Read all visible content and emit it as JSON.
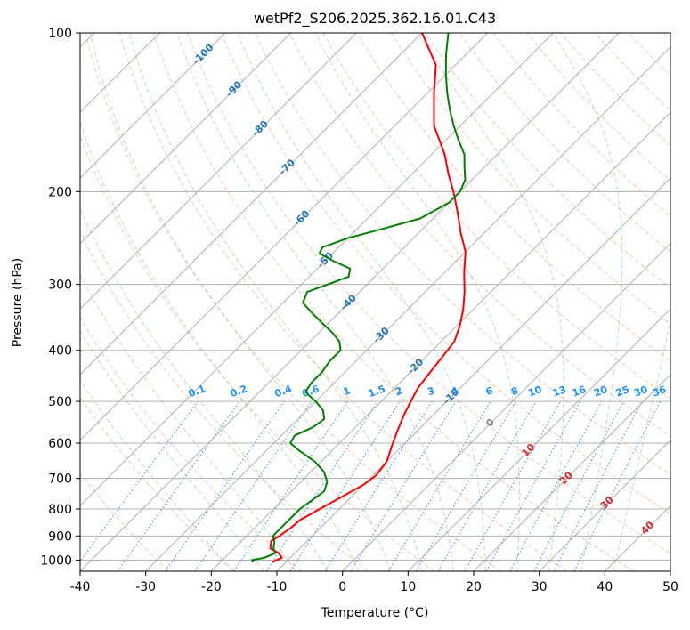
{
  "chart_data": {
    "type": "line",
    "diagram": "skew-T log-p",
    "title": "wetPf2_S206.2025.362.16.01.C43",
    "xlabel": "Temperature (°C)",
    "ylabel": "Pressure (hPa)",
    "xlim": [
      -40,
      50
    ],
    "ylim": [
      1050,
      100
    ],
    "y_scale": "log",
    "grid": true,
    "x_ticks": [
      -40,
      -30,
      -20,
      -10,
      0,
      10,
      20,
      30,
      40,
      50
    ],
    "y_ticks": [
      100,
      200,
      300,
      400,
      500,
      600,
      700,
      800,
      900,
      1000
    ],
    "colors": {
      "temperature": "#ff0000",
      "dewpoint": "#008000",
      "dry_adiabats": "#ffa07a",
      "moist_adiabats": "#8fbc8f",
      "mixing_ratio": "#1e90ff",
      "grid": "#b0b0b0",
      "isotherm_labels": "#1f77b4",
      "warm_isotherm_labels": "#d62728"
    },
    "isotherm_labels_cold": [
      "-100",
      "-90",
      "-80",
      "-70",
      "-60",
      "-50",
      "-40",
      "-30",
      "-20",
      "-10"
    ],
    "isotherm_labels_warm": [
      "0",
      "10",
      "20",
      "30",
      "40"
    ],
    "mixing_ratio_labels": [
      "0.1",
      "0.2",
      "0.4",
      "0.6",
      "1",
      "1.5",
      "2",
      "3",
      "4",
      "6",
      "8",
      "10",
      "13",
      "16",
      "20",
      "25",
      "30",
      "36"
    ],
    "series": [
      {
        "key": "temperature",
        "p": [
          1010,
          1000,
          990,
          970,
          950,
          920,
          900,
          870,
          840,
          800,
          760,
          720,
          690,
          650,
          610,
          570,
          530,
          500,
          470,
          440,
          410,
          385,
          360,
          335,
          310,
          285,
          260,
          240,
          220,
          200,
          185,
          170,
          150,
          130,
          115,
          100
        ],
        "t": [
          -12.0,
          -11.8,
          -11.3,
          -12.5,
          -14.5,
          -15.5,
          -15.0,
          -14.5,
          -14.3,
          -13.0,
          -11.5,
          -10.0,
          -9.5,
          -10.0,
          -11.5,
          -13.0,
          -14.5,
          -15.5,
          -16.5,
          -17.0,
          -17.5,
          -18.0,
          -19.5,
          -21.5,
          -24.0,
          -27.0,
          -30.0,
          -33.5,
          -37.0,
          -41.0,
          -44.5,
          -48.0,
          -54.0,
          -59.0,
          -63.0,
          -70.0
        ]
      },
      {
        "key": "dewpoint",
        "p": [
          1010,
          1000,
          990,
          970,
          950,
          920,
          900,
          870,
          840,
          800,
          770,
          740,
          710,
          680,
          650,
          620,
          600,
          580,
          560,
          540,
          520,
          500,
          480,
          460,
          440,
          420,
          400,
          385,
          370,
          355,
          340,
          325,
          310,
          300,
          290,
          280,
          270,
          262,
          255,
          245,
          235,
          225,
          210,
          200,
          190,
          180,
          170,
          160,
          150,
          140,
          130,
          120,
          110,
          100
        ],
        "t": [
          -15.0,
          -15.5,
          -14.0,
          -13.0,
          -14.0,
          -15.0,
          -16.0,
          -16.0,
          -16.0,
          -16.0,
          -15.5,
          -15.0,
          -16.0,
          -18.0,
          -21.0,
          -25.0,
          -27.5,
          -28.0,
          -26.5,
          -26.0,
          -27.5,
          -30.0,
          -33.0,
          -33.5,
          -33.5,
          -34.0,
          -34.0,
          -35.5,
          -38.0,
          -41.0,
          -44.0,
          -47.0,
          -48.0,
          -46.0,
          -44.0,
          -45.0,
          -49.0,
          -52.0,
          -52.5,
          -50.0,
          -46.0,
          -42.0,
          -40.0,
          -40.0,
          -41.0,
          -43.0,
          -45.0,
          -48.0,
          -51.0,
          -54.0,
          -57.0,
          -60.0,
          -63.0,
          -66.0
        ]
      }
    ]
  }
}
